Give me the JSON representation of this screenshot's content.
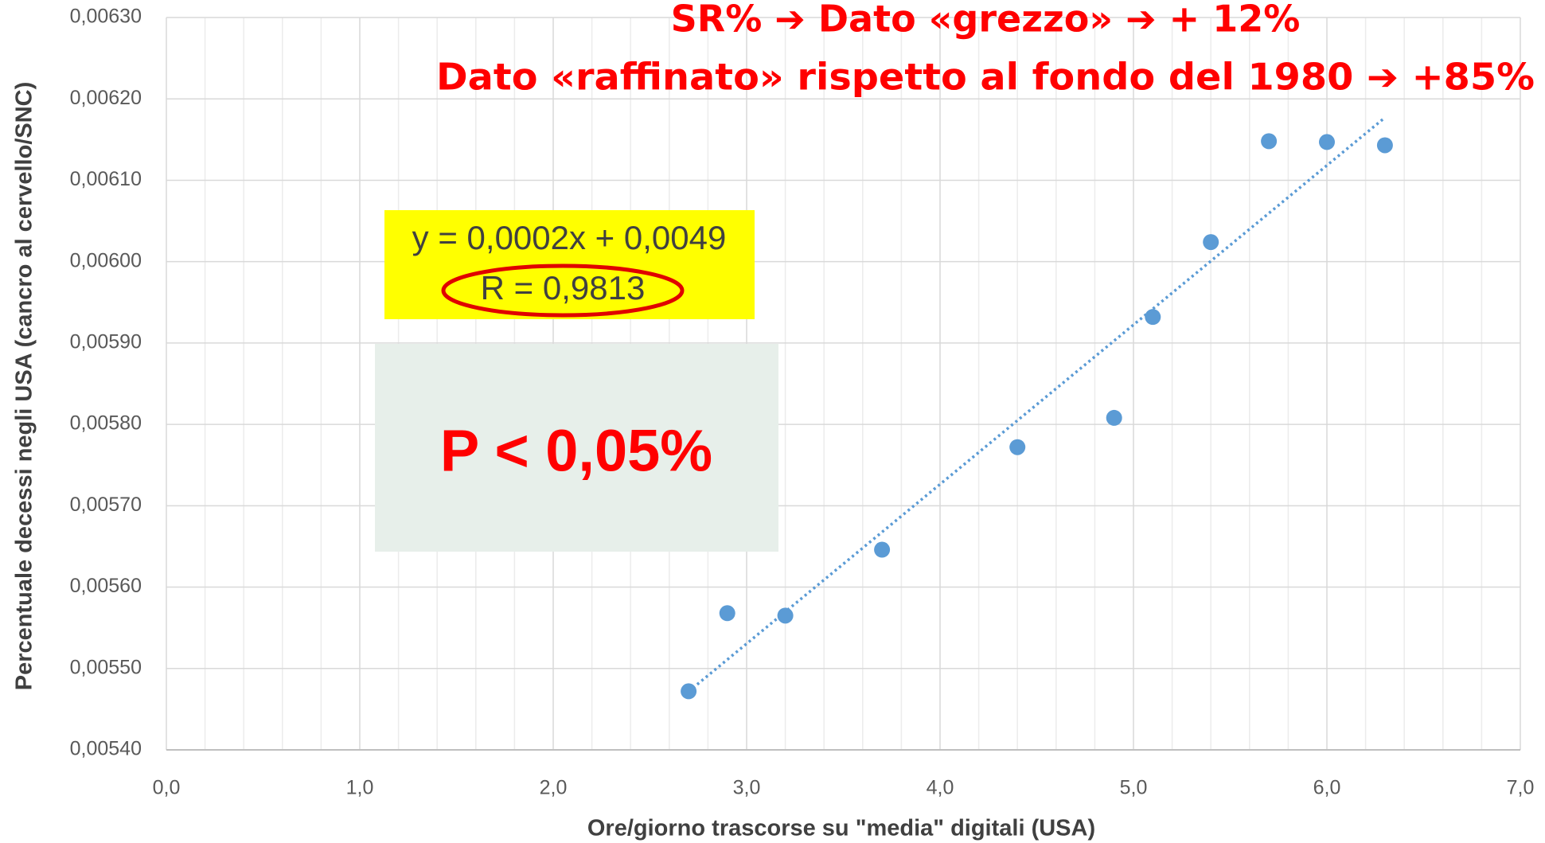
{
  "chart_data": {
    "type": "scatter",
    "title": "SR% ➔ Dato «grezzo» ➔ + 12%",
    "subtitle": "Dato «raffinato» rispetto al fondo del 1980 ➔ +85%",
    "x_label": "Ore/giorno trascorse su \"media\" digitali (USA)",
    "y_label": "Percentuale decessi  negli USA (cancro al cervello/SNC)",
    "annotations": {
      "equation": "y = 0,0002x + 0,0049",
      "r_value": "R = 0,9813",
      "p_value": "P < 0,05%"
    },
    "trendline": true,
    "series": [
      {
        "color": "#5b9bd5",
        "x": [
          2.7,
          2.9,
          3.2,
          3.7,
          4.4,
          4.9,
          5.1,
          5.4,
          5.7,
          6.0,
          6.3
        ],
        "values": [
          0.005472,
          0.005568,
          0.005565,
          0.005646,
          0.005772,
          0.005808,
          0.005932,
          0.006024,
          0.006148,
          0.006147,
          0.006143
        ]
      }
    ],
    "xlim": [
      0,
      7
    ],
    "xticks": [
      {
        "value": 0,
        "label": "0,0"
      },
      {
        "value": 1,
        "label": "1,0"
      },
      {
        "value": 2,
        "label": "2,0"
      },
      {
        "value": 3,
        "label": "3,0"
      },
      {
        "value": 4,
        "label": "4,0"
      },
      {
        "value": 5,
        "label": "5,0"
      },
      {
        "value": 6,
        "label": "6,0"
      },
      {
        "value": 7,
        "label": "7,0"
      }
    ],
    "ylim": [
      0.0054,
      0.0063
    ],
    "yticks": [
      {
        "value": 0.0054,
        "label": "0,00540"
      },
      {
        "value": 0.0055,
        "label": "0,00550"
      },
      {
        "value": 0.0056,
        "label": "0,00560"
      },
      {
        "value": 0.0057,
        "label": "0,00570"
      },
      {
        "value": 0.0058,
        "label": "0,00580"
      },
      {
        "value": 0.0059,
        "label": "0,00590"
      },
      {
        "value": 0.006,
        "label": "0,00600"
      },
      {
        "value": 0.0061,
        "label": "0,00610"
      },
      {
        "value": 0.0062,
        "label": "0,00620"
      },
      {
        "value": 0.0063,
        "label": "0,00630"
      }
    ],
    "grid": true
  }
}
